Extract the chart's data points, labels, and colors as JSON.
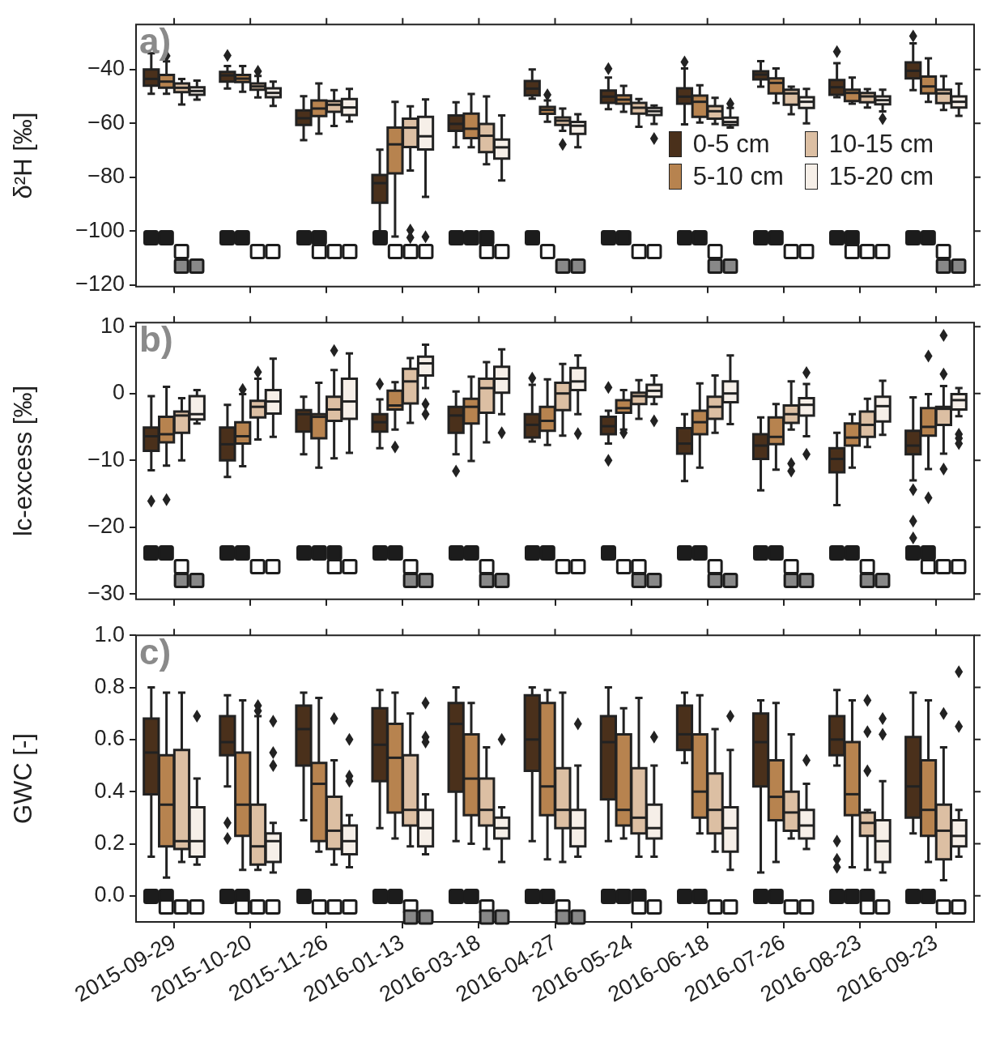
{
  "chart_data": [
    {
      "type": "box",
      "categories": [
        "2015-09-29",
        "2015-10-20",
        "2015-11-26",
        "2016-01-13",
        "2016-03-18",
        "2016-04-27",
        "2016-05-24",
        "2016-06-18",
        "2016-07-26",
        "2016-08-23",
        "2016-09-23"
      ],
      "ylabel": "δ²H [‰]",
      "annotations": [
        "a)"
      ],
      "ylim": [
        -120.6,
        -23.3
      ],
      "yticks": [
        {
          "value": -40,
          "label": "−40"
        },
        {
          "value": -60,
          "label": "−60"
        },
        {
          "value": -80,
          "label": "−80"
        },
        {
          "value": -100,
          "label": "−100"
        },
        {
          "value": -120,
          "label": "−120"
        }
      ],
      "tick_labels": "y",
      "grid": false,
      "legend": "center right",
      "series": [
        {
          "name": "0-5 cm",
          "color": "#4a301b",
          "boxes": [
            {
              "low": -49,
              "q1": -46,
              "median": -43.5,
              "q3": -40,
              "high": -34
            },
            {
              "low": -47.1,
              "q1": -44.5,
              "median": -42.2,
              "q3": -40.9,
              "high": -38.7,
              "outliers": [
                -34.8
              ]
            },
            {
              "low": -66.2,
              "q1": -60.6,
              "median": -58.1,
              "q3": -55.2,
              "high": -49.9
            },
            {
              "low": -100.3,
              "q1": -89.5,
              "median": -82.2,
              "q3": -79.2,
              "high": -69.8
            },
            {
              "low": -68.9,
              "q1": -62.8,
              "median": -60.2,
              "q3": -57.1,
              "high": -52.2
            },
            {
              "low": -50.8,
              "q1": -49.6,
              "median": -47.1,
              "q3": -44.3,
              "high": -40
            },
            {
              "low": -54.7,
              "q1": -52.4,
              "median": -50.1,
              "q3": -47.8,
              "high": -43,
              "outliers": [
                -39.7
              ]
            },
            {
              "low": -60.4,
              "q1": -52.7,
              "median": -50.1,
              "q3": -47,
              "high": -39.6,
              "outliers": [
                -37.2
              ]
            },
            {
              "low": -46.4,
              "q1": -43.7,
              "median": -41.9,
              "q3": -40.7,
              "high": -36.9
            },
            {
              "low": -50.3,
              "q1": -49.4,
              "median": -46.6,
              "q3": -43.9,
              "high": -37.7,
              "outliers": [
                -33.4
              ]
            },
            {
              "low": -47.7,
              "q1": -43.3,
              "median": -40.5,
              "q3": -37.4,
              "high": -30.3,
              "outliers": [
                -27.6
              ]
            }
          ]
        },
        {
          "name": "5-10 cm",
          "color": "#b7834f",
          "boxes": [
            {
              "low": -49,
              "q1": -46.8,
              "median": -44.5,
              "q3": -42,
              "high": -37,
              "outliers": [
                -35
              ]
            },
            {
              "low": -48.3,
              "q1": -44.7,
              "median": -43.4,
              "q3": -42,
              "high": -38.7
            },
            {
              "low": -63.8,
              "q1": -57.3,
              "median": -54.5,
              "q3": -51.5,
              "high": -45.2
            },
            {
              "low": -102,
              "q1": -78.6,
              "median": -67.8,
              "q3": -61.6,
              "high": -52
            },
            {
              "low": -68.9,
              "q1": -65.5,
              "median": -62,
              "q3": -56.4,
              "high": -49.1
            },
            {
              "low": -59.4,
              "q1": -56.5,
              "median": -55,
              "q3": -53.9,
              "high": -51.5,
              "outliers": [
                -49.4
              ]
            },
            {
              "low": -55.7,
              "q1": -52.7,
              "median": -51.2,
              "q3": -49.6,
              "high": -46.1
            },
            {
              "low": -59.7,
              "q1": -57.6,
              "median": -52,
              "q3": -49.7,
              "high": -45.9
            },
            {
              "low": -52.5,
              "q1": -48.9,
              "median": -45,
              "q3": -43.3,
              "high": -39.6
            },
            {
              "low": -52.7,
              "q1": -51.7,
              "median": -48.7,
              "q3": -47.5,
              "high": -43
            },
            {
              "low": -52,
              "q1": -48.9,
              "median": -46.3,
              "q3": -42.6,
              "high": -35.9
            }
          ]
        },
        {
          "name": "10-15 cm",
          "color": "#dcbfa3",
          "boxes": [
            {
              "low": -53,
              "q1": -48.4,
              "median": -46.8,
              "q3": -45.2,
              "high": -43.5
            },
            {
              "low": -50.4,
              "q1": -47.5,
              "median": -46.3,
              "q3": -45.2,
              "high": -42.4,
              "outliers": [
                -40.7
              ]
            },
            {
              "low": -61,
              "q1": -55.7,
              "median": -53.1,
              "q3": -51.7,
              "high": -47.7
            },
            {
              "low": -77.5,
              "q1": -68.8,
              "median": -61.6,
              "q3": -58.3,
              "high": -53.7,
              "outliers": [
                -99.6,
                -102.4
              ]
            },
            {
              "low": -75.2,
              "q1": -70.7,
              "median": -64.6,
              "q3": -60.2,
              "high": -50
            },
            {
              "low": -62.8,
              "q1": -60.6,
              "median": -59,
              "q3": -57.8,
              "high": -54.5,
              "outliers": [
                -67.8
              ]
            },
            {
              "low": -61.3,
              "q1": -56.4,
              "median": -54.2,
              "q3": -52.4,
              "high": -51
            },
            {
              "low": -60.2,
              "q1": -58.3,
              "median": -55.5,
              "q3": -53.6,
              "high": -50.5
            },
            {
              "low": -56.6,
              "q1": -53.1,
              "median": -48.9,
              "q3": -47.5,
              "high": -46.4
            },
            {
              "low": -54.1,
              "q1": -52.2,
              "median": -50,
              "q3": -48.7,
              "high": -47.3
            },
            {
              "low": -55,
              "q1": -52.5,
              "median": -48.9,
              "q3": -47.5,
              "high": -42.5
            }
          ]
        },
        {
          "name": "15-20 cm",
          "color": "#f6efe8",
          "boxes": [
            {
              "low": -51.2,
              "q1": -49.4,
              "median": -48,
              "q3": -46.6,
              "high": -44.1
            },
            {
              "low": -53.5,
              "q1": -50.3,
              "median": -48.7,
              "q3": -47,
              "high": -44.5
            },
            {
              "low": -59.3,
              "q1": -56.9,
              "median": -54.1,
              "q3": -51,
              "high": -47.2
            },
            {
              "low": -87.3,
              "q1": -69.7,
              "median": -64.8,
              "q3": -57.6,
              "high": -51.1,
              "outliers": [
                -102.1
              ]
            },
            {
              "low": -81.2,
              "q1": -73.1,
              "median": -68.9,
              "q3": -66,
              "high": -57.1
            },
            {
              "low": -68.9,
              "q1": -63.9,
              "median": -60.9,
              "q3": -59.5,
              "high": -56.6
            },
            {
              "low": -60.2,
              "q1": -56.9,
              "median": -55.5,
              "q3": -54.3,
              "high": -53.4,
              "outliers": [
                -65.6
              ]
            },
            {
              "low": -61.6,
              "q1": -60.6,
              "median": -59.5,
              "q3": -57.9,
              "high": -54.3,
              "outliers": [
                -52.7
              ]
            },
            {
              "low": -60,
              "q1": -54.3,
              "median": -52,
              "q3": -50.3,
              "high": -47.2
            },
            {
              "low": -55.6,
              "q1": -52.9,
              "median": -51.4,
              "q3": -50,
              "high": -47.5,
              "outliers": [
                -58.3
              ]
            },
            {
              "low": -57.2,
              "q1": -54.1,
              "median": -52,
              "q3": -50,
              "high": -45.3
            }
          ]
        }
      ]
    },
    {
      "type": "box",
      "categories": [
        "2015-09-29",
        "2015-10-20",
        "2015-11-26",
        "2016-01-13",
        "2016-03-18",
        "2016-04-27",
        "2016-05-24",
        "2016-06-18",
        "2016-07-26",
        "2016-08-23",
        "2016-09-23"
      ],
      "ylabel": "lc-excess [‰]",
      "annotations": [
        "b)"
      ],
      "ylim": [
        -30.8,
        10.6
      ],
      "yticks": [
        10,
        0,
        {
          "value": -10,
          "label": "−10"
        },
        {
          "value": -20,
          "label": "−20"
        },
        {
          "value": -30,
          "label": "−30"
        }
      ],
      "tick_labels": "y",
      "grid": false,
      "series": [
        {
          "color": "#4a301b",
          "boxes": [
            {
              "low": -11.5,
              "q1": -8.6,
              "median": -6.4,
              "q3": -5.1,
              "high": -0.4,
              "outliers": [
                -16.1
              ]
            },
            {
              "low": -12.5,
              "q1": -10,
              "median": -7.6,
              "q3": -5.1,
              "high": -1.7
            },
            {
              "low": -9.1,
              "q1": -5.7,
              "median": -3.1,
              "q3": -2.5,
              "high": -0.5
            },
            {
              "low": -8.2,
              "q1": -5.7,
              "median": -4.3,
              "q3": -3.1,
              "high": -0.9,
              "outliers": [
                1.4
              ]
            },
            {
              "low": -9.1,
              "q1": -5.9,
              "median": -3.3,
              "q3": -2,
              "high": 0.3,
              "outliers": [
                -11.6
              ]
            },
            {
              "low": -7.2,
              "q1": -6.6,
              "median": -4.7,
              "q3": -3.1,
              "high": 1.3,
              "outliers": [
                2.3
              ]
            },
            {
              "low": -7.5,
              "q1": -6.1,
              "median": -4.9,
              "q3": -3.5,
              "high": -2.6,
              "outliers": [
                0.9,
                -10
              ]
            },
            {
              "low": -13.1,
              "q1": -9,
              "median": -7.5,
              "q3": -5.2,
              "high": -3.1
            },
            {
              "low": -14.5,
              "q1": -9.8,
              "median": -7.8,
              "q3": -6.1,
              "high": -3.6
            },
            {
              "low": -16.7,
              "q1": -11.8,
              "median": -9.8,
              "q3": -8.2,
              "high": -5.9
            },
            {
              "low": -13,
              "q1": -9.1,
              "median": -7.8,
              "q3": -5.6,
              "high": -0.6,
              "outliers": [
                -14.4,
                -19.1,
                -21.6
              ]
            }
          ]
        },
        {
          "color": "#b7834f",
          "boxes": [
            {
              "low": -10.8,
              "q1": -7.3,
              "median": -6.1,
              "q3": -3.5,
              "high": 1,
              "outliers": [
                -15.9
              ]
            },
            {
              "low": -10.9,
              "q1": -7.5,
              "median": -6.4,
              "q3": -4.3,
              "high": -0.1,
              "outliers": [
                0.6
              ]
            },
            {
              "low": -11.1,
              "q1": -6.7,
              "median": -3.5,
              "q3": -3.1,
              "high": 1.6
            },
            {
              "low": -5.4,
              "q1": -2.4,
              "median": -1.8,
              "q3": 0.4,
              "high": 1.7,
              "outliers": [
                -8
              ]
            },
            {
              "low": -10.1,
              "q1": -4.5,
              "median": -2,
              "q3": -0.8,
              "high": 2.5
            },
            {
              "low": -7.7,
              "q1": -5.6,
              "median": -4.1,
              "q3": -2,
              "high": 2.1
            },
            {
              "low": -5.4,
              "q1": -2.9,
              "median": -2.2,
              "q3": -1,
              "high": 0.5,
              "outliers": [
                -5.9
              ]
            },
            {
              "low": -11.1,
              "q1": -6.1,
              "median": -4.3,
              "q3": -2.6,
              "high": 1.5
            },
            {
              "low": -11.4,
              "q1": -7.6,
              "median": -6.5,
              "q3": -3.6,
              "high": -1.6
            },
            {
              "low": -11.1,
              "q1": -7.8,
              "median": -6.6,
              "q3": -4.5,
              "high": -3.1
            },
            {
              "low": -11.3,
              "q1": -6.3,
              "median": -5,
              "q3": -2.2,
              "high": -0.1,
              "outliers": [
                5.6,
                -15.6
              ]
            }
          ]
        },
        {
          "color": "#dcbfa3",
          "boxes": [
            {
              "low": -10,
              "q1": -5.9,
              "median": -3.3,
              "q3": -2.7,
              "high": -0.7
            },
            {
              "low": -6.9,
              "q1": -3.6,
              "median": -2,
              "q3": -1.1,
              "high": 2.2,
              "outliers": [
                3.2
              ]
            },
            {
              "low": -9.7,
              "q1": -4.1,
              "median": -2.4,
              "q3": -0.5,
              "high": 3.5,
              "outliers": [
                6.4
              ]
            },
            {
              "low": -4.4,
              "q1": -1.5,
              "median": 1.8,
              "q3": 3.7,
              "high": 5.3
            },
            {
              "low": -7.3,
              "q1": -2.9,
              "median": 0.8,
              "q3": 2.2,
              "high": 4.7
            },
            {
              "low": -6.3,
              "q1": -2.5,
              "median": 0,
              "q3": 1.6,
              "high": 4.4
            },
            {
              "low": -3.8,
              "q1": -1.6,
              "median": -0.4,
              "q3": 0.1,
              "high": 2
            },
            {
              "low": -5.9,
              "q1": -3.8,
              "median": -2,
              "q3": -0.5,
              "high": 2.7
            },
            {
              "low": -5.4,
              "q1": -4.4,
              "median": -3.1,
              "q3": -1.8,
              "high": 1.8,
              "outliers": [
                -10.5,
                -11.6
              ]
            },
            {
              "low": -8,
              "q1": -6.5,
              "median": -4.7,
              "q3": -2.7,
              "high": -0.8
            },
            {
              "low": -9,
              "q1": -4.7,
              "median": -2.3,
              "q3": -2,
              "high": 1.1,
              "outliers": [
                8.7,
                2.9,
                -11.3
              ]
            }
          ]
        },
        {
          "color": "#f6efe8",
          "boxes": [
            {
              "low": -4.5,
              "q1": -3.9,
              "median": -3.1,
              "q3": -0.4,
              "high": 0.5
            },
            {
              "low": -6.5,
              "q1": -3,
              "median": -1.2,
              "q3": 0.5,
              "high": 5.2
            },
            {
              "low": -8.9,
              "q1": -3.8,
              "median": -1.2,
              "q3": 2.2,
              "high": 6
            },
            {
              "low": 0.8,
              "q1": 2.7,
              "median": 4.5,
              "q3": 5.5,
              "high": 7.3,
              "outliers": [
                -1.6,
                -3.1
              ]
            },
            {
              "low": -3.1,
              "q1": 0.1,
              "median": 2.2,
              "q3": 4,
              "high": 6.6,
              "outliers": [
                -5.9
              ]
            },
            {
              "low": -3.1,
              "q1": 0.5,
              "median": 1.8,
              "q3": 3.8,
              "high": 5.7,
              "outliers": [
                -6
              ]
            },
            {
              "low": -1.6,
              "q1": -0.5,
              "median": 0.4,
              "q3": 1.3,
              "high": 2.7,
              "outliers": [
                -4.1
              ]
            },
            {
              "low": -4.6,
              "q1": -1.3,
              "median": 0,
              "q3": 1.8,
              "high": 5.7
            },
            {
              "low": -6.4,
              "q1": -3.3,
              "median": -1.7,
              "q3": -0.7,
              "high": 1.4,
              "outliers": [
                3.1,
                -9.1
              ]
            },
            {
              "low": -6.2,
              "q1": -4.2,
              "median": -1.9,
              "q3": -0.5,
              "high": 1.9
            },
            {
              "low": -3.4,
              "q1": -2.4,
              "median": -1,
              "q3": -0.1,
              "high": 0.8,
              "outliers": [
                -6.1,
                -6.7,
                -7.5
              ]
            }
          ]
        }
      ]
    },
    {
      "type": "box",
      "categories": [
        "2015-09-29",
        "2015-10-20",
        "2015-11-26",
        "2016-01-13",
        "2016-03-18",
        "2016-04-27",
        "2016-05-24",
        "2016-06-18",
        "2016-07-26",
        "2016-08-23",
        "2016-09-23"
      ],
      "ylabel": "GWC [-]",
      "annotations": [
        "c)"
      ],
      "ylim": [
        -0.1,
        1.0
      ],
      "yticks": [
        {
          "value": 0,
          "label": "0.0"
        },
        {
          "value": 0.2,
          "label": "0.2"
        },
        {
          "value": 0.4,
          "label": "0.4"
        },
        {
          "value": 0.6,
          "label": "0.6"
        },
        {
          "value": 0.8,
          "label": "0.8"
        },
        {
          "value": 1,
          "label": "1.0"
        }
      ],
      "grid": false,
      "series": [
        {
          "color": "#4a301b",
          "boxes": [
            {
              "low": 0.15,
              "q1": 0.39,
              "median": 0.55,
              "q3": 0.68,
              "high": 0.8
            },
            {
              "low": 0.42,
              "q1": 0.54,
              "median": 0.59,
              "q3": 0.69,
              "high": 0.77,
              "outliers": [
                0.28,
                0.22
              ]
            },
            {
              "low": 0.29,
              "q1": 0.5,
              "median": 0.64,
              "q3": 0.73,
              "high": 0.78
            },
            {
              "low": 0.26,
              "q1": 0.44,
              "median": 0.58,
              "q3": 0.72,
              "high": 0.79
            },
            {
              "low": 0.21,
              "q1": 0.4,
              "median": 0.66,
              "q3": 0.74,
              "high": 0.8
            },
            {
              "low": 0.21,
              "q1": 0.48,
              "median": 0.6,
              "q3": 0.77,
              "high": 0.8
            },
            {
              "low": 0.21,
              "q1": 0.37,
              "median": 0.59,
              "q3": 0.69,
              "high": 0.8
            },
            {
              "low": 0.51,
              "q1": 0.56,
              "median": 0.62,
              "q3": 0.73,
              "high": 0.78
            },
            {
              "low": 0.09,
              "q1": 0.42,
              "median": 0.59,
              "q3": 0.7,
              "high": 0.75
            },
            {
              "low": 0.5,
              "q1": 0.54,
              "median": 0.6,
              "q3": 0.69,
              "high": 0.79,
              "outliers": [
                0.21,
                0.14,
                0.11
              ]
            },
            {
              "low": 0.24,
              "q1": 0.3,
              "median": 0.42,
              "q3": 0.61,
              "high": 0.78
            }
          ]
        },
        {
          "color": "#b7834f",
          "boxes": [
            {
              "low": 0.07,
              "q1": 0.19,
              "median": 0.35,
              "q3": 0.54,
              "high": 0.78
            },
            {
              "low": 0.1,
              "q1": 0.23,
              "median": 0.35,
              "q3": 0.55,
              "high": 0.75
            },
            {
              "low": 0.17,
              "q1": 0.21,
              "median": 0.43,
              "q3": 0.51,
              "high": 0.76
            },
            {
              "low": 0.22,
              "q1": 0.32,
              "median": 0.53,
              "q3": 0.66,
              "high": 0.78
            },
            {
              "low": 0.2,
              "q1": 0.31,
              "median": 0.45,
              "q3": 0.62,
              "high": 0.74
            },
            {
              "low": 0.14,
              "q1": 0.31,
              "median": 0.42,
              "q3": 0.74,
              "high": 0.79
            },
            {
              "low": 0.22,
              "q1": 0.27,
              "median": 0.33,
              "q3": 0.62,
              "high": 0.72
            },
            {
              "low": 0.24,
              "q1": 0.3,
              "median": 0.4,
              "q3": 0.62,
              "high": 0.77
            },
            {
              "low": 0.13,
              "q1": 0.29,
              "median": 0.38,
              "q3": 0.52,
              "high": 0.74
            },
            {
              "low": 0.11,
              "q1": 0.31,
              "median": 0.39,
              "q3": 0.59,
              "high": 0.75
            },
            {
              "low": 0.13,
              "q1": 0.23,
              "median": 0.33,
              "q3": 0.52,
              "high": 0.75
            }
          ]
        },
        {
          "color": "#dcbfa3",
          "boxes": [
            {
              "low": 0.13,
              "q1": 0.18,
              "median": 0.21,
              "q3": 0.56,
              "high": 0.78
            },
            {
              "low": 0.1,
              "q1": 0.12,
              "median": 0.19,
              "q3": 0.35,
              "high": 0.69,
              "outliers": [
                0.73,
                0.71
              ]
            },
            {
              "low": 0.12,
              "q1": 0.18,
              "median": 0.25,
              "q3": 0.38,
              "high": 0.52,
              "outliers": [
                0.68
              ]
            },
            {
              "low": 0.19,
              "q1": 0.27,
              "median": 0.33,
              "q3": 0.54,
              "high": 0.7
            },
            {
              "low": 0.18,
              "q1": 0.27,
              "median": 0.33,
              "q3": 0.45,
              "high": 0.57
            },
            {
              "low": 0.13,
              "q1": 0.26,
              "median": 0.33,
              "q3": 0.49,
              "high": 0.78
            },
            {
              "low": 0.15,
              "q1": 0.24,
              "median": 0.3,
              "q3": 0.49,
              "high": 0.76
            },
            {
              "low": 0.17,
              "q1": 0.24,
              "median": 0.33,
              "q3": 0.47,
              "high": 0.64
            },
            {
              "low": 0.22,
              "q1": 0.25,
              "median": 0.32,
              "q3": 0.4,
              "high": 0.62
            },
            {
              "low": 0.1,
              "q1": 0.23,
              "median": 0.28,
              "q3": 0.32,
              "high": 0.33,
              "outliers": [
                0.75,
                0.63,
                0.48
              ]
            },
            {
              "low": 0.06,
              "q1": 0.14,
              "median": 0.25,
              "q3": 0.35,
              "high": 0.57,
              "outliers": [
                0.7
              ]
            }
          ]
        },
        {
          "color": "#f6efe8",
          "boxes": [
            {
              "low": 0.12,
              "q1": 0.15,
              "median": 0.21,
              "q3": 0.34,
              "high": 0.45,
              "outliers": [
                0.69
              ]
            },
            {
              "low": 0.09,
              "q1": 0.13,
              "median": 0.21,
              "q3": 0.24,
              "high": 0.28,
              "outliers": [
                0.67,
                0.55,
                0.5
              ]
            },
            {
              "low": 0.11,
              "q1": 0.16,
              "median": 0.21,
              "q3": 0.27,
              "high": 0.31,
              "outliers": [
                0.6,
                0.46,
                0.44
              ]
            },
            {
              "low": 0.16,
              "q1": 0.19,
              "median": 0.26,
              "q3": 0.33,
              "high": 0.39,
              "outliers": [
                0.74,
                0.61,
                0.59
              ]
            },
            {
              "low": 0.13,
              "q1": 0.22,
              "median": 0.26,
              "q3": 0.3,
              "high": 0.34,
              "outliers": [
                0.6
              ]
            },
            {
              "low": 0.15,
              "q1": 0.19,
              "median": 0.26,
              "q3": 0.33,
              "high": 0.5,
              "outliers": [
                0.66
              ]
            },
            {
              "low": 0.15,
              "q1": 0.22,
              "median": 0.26,
              "q3": 0.35,
              "high": 0.5,
              "outliers": [
                0.61
              ]
            },
            {
              "low": 0.1,
              "q1": 0.17,
              "median": 0.26,
              "q3": 0.34,
              "high": 0.56,
              "outliers": [
                0.69
              ]
            },
            {
              "low": 0.18,
              "q1": 0.22,
              "median": 0.27,
              "q3": 0.33,
              "high": 0.43,
              "outliers": [
                0.52
              ]
            },
            {
              "low": 0.09,
              "q1": 0.13,
              "median": 0.21,
              "q3": 0.29,
              "high": 0.44,
              "outliers": [
                0.68,
                0.62
              ]
            },
            {
              "low": 0.15,
              "q1": 0.19,
              "median": 0.23,
              "q3": 0.29,
              "high": 0.33,
              "outliers": [
                0.86,
                0.65
              ]
            }
          ]
        }
      ]
    }
  ]
}
